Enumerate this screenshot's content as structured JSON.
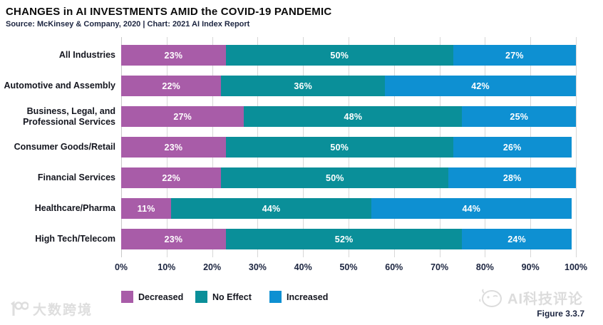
{
  "header": {
    "title": "CHANGES in AI INVESTMENTS AMID the COVID-19 PANDEMIC",
    "source": "Source: McKinsey & Company, 2020 | Chart: 2021 AI Index Report"
  },
  "chart_data": {
    "type": "bar",
    "orientation": "horizontal",
    "stacked": true,
    "title": "CHANGES in AI INVESTMENTS AMID the COVID-19 PANDEMIC",
    "categories": [
      "All Industries",
      "Automotive and Assembly",
      "Business, Legal, and Professional Services",
      "Consumer Goods/Retail",
      "Financial Services",
      "Healthcare/Pharma",
      "High Tech/Telecom"
    ],
    "series": [
      {
        "name": "Decreased",
        "color": "#a85ca8",
        "values": [
          23,
          22,
          27,
          23,
          22,
          11,
          23
        ]
      },
      {
        "name": "No Effect",
        "color": "#0a8f99",
        "values": [
          50,
          36,
          48,
          50,
          50,
          44,
          52
        ]
      },
      {
        "name": "Increased",
        "color": "#0e90d2",
        "values": [
          27,
          42,
          25,
          26,
          28,
          44,
          24
        ]
      }
    ],
    "value_suffix": "%",
    "xlim": [
      0,
      100
    ],
    "x_ticks": [
      "0%",
      "10%",
      "20%",
      "30%",
      "40%",
      "50%",
      "60%",
      "70%",
      "80%",
      "90%",
      "100%"
    ],
    "grid": true,
    "legend_position": "bottom"
  },
  "colors": {
    "decreased": "#a85ca8",
    "no_effect": "#0a8f99",
    "increased": "#0e90d2",
    "gridline": "#d7d7d7",
    "text_dark": "#1c2540"
  },
  "footer": {
    "figure_label": "Figure 3.3.7",
    "watermark_left": "大数跨境",
    "watermark_right": "AI科技评论"
  }
}
